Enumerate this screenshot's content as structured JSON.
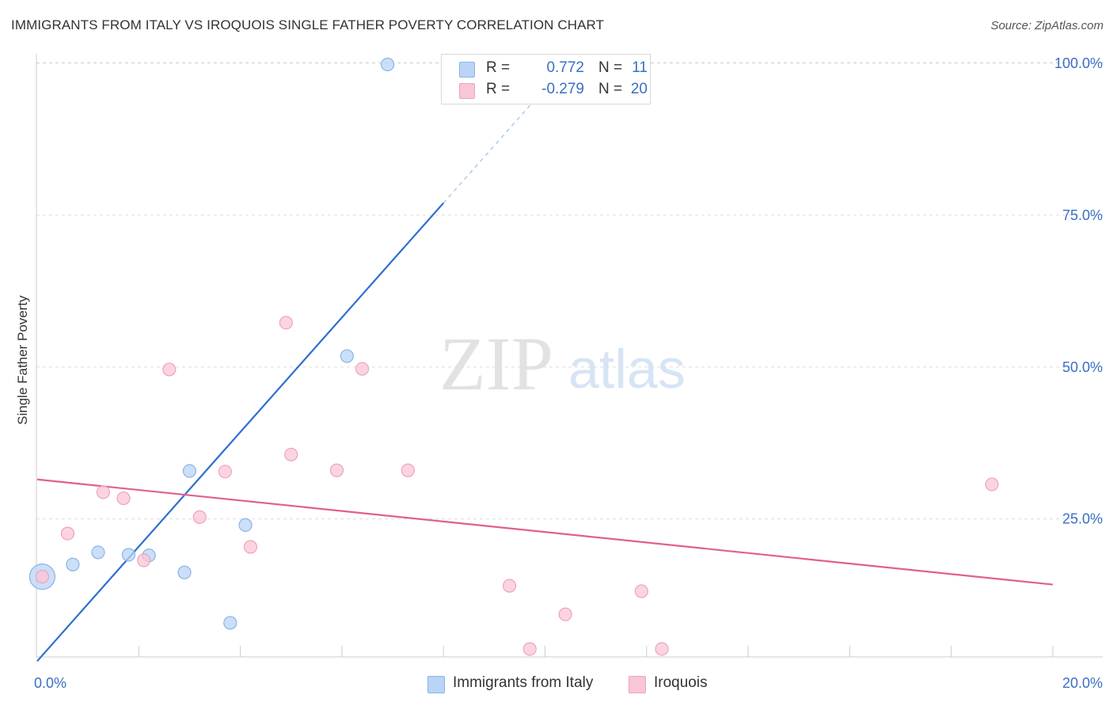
{
  "title": "IMMIGRANTS FROM ITALY VS IROQUOIS SINGLE FATHER POVERTY CORRELATION CHART",
  "source": "Source: ZipAtlas.com",
  "watermark": {
    "zip": "ZIP",
    "atlas": "atlas"
  },
  "legend": {
    "italy": {
      "r_label": "R =",
      "r_value": "0.772",
      "n_label": "N =",
      "n_value": "11"
    },
    "iroquois": {
      "r_label": "R =",
      "r_value": "-0.279",
      "n_label": "N =",
      "n_value": "20"
    }
  },
  "bottom_legend": {
    "italy": "Immigrants from Italy",
    "iroquois": "Iroquois"
  },
  "colors": {
    "italy_fill": "#b9d4f5",
    "italy_stroke": "#8ab3e6",
    "italy_line": "#2f6fd1",
    "iroquois_fill": "#f9c6d5",
    "iroquois_stroke": "#eea3bb",
    "iroquois_line": "#e0608c",
    "tick_label": "#3a6fc4",
    "grid": "#dddddd"
  },
  "chart_data": {
    "type": "scatter",
    "title": "IMMIGRANTS FROM ITALY VS IROQUOIS SINGLE FATHER POVERTY CORRELATION CHART",
    "xlabel": "",
    "ylabel": "Single Father Poverty",
    "xlim": [
      0,
      20
    ],
    "ylim": [
      0,
      105
    ],
    "x_tick_labels": [
      {
        "value": 0,
        "label": "0.0%"
      },
      {
        "value": 20,
        "label": "20.0%"
      }
    ],
    "y_tick_labels": [
      {
        "value": 25,
        "label": "25.0%"
      },
      {
        "value": 50,
        "label": "50.0%"
      },
      {
        "value": 75,
        "label": "75.0%"
      },
      {
        "value": 100,
        "label": "100.0%"
      }
    ],
    "x_minor_ticks": [
      2,
      4,
      6,
      8,
      10,
      12,
      14,
      16,
      18,
      20
    ],
    "series": [
      {
        "name": "Immigrants from Italy",
        "key": "italy",
        "points": [
          {
            "x": 0.1,
            "y": 15.5,
            "big": true
          },
          {
            "x": 0.7,
            "y": 17.5
          },
          {
            "x": 1.2,
            "y": 19.5
          },
          {
            "x": 1.8,
            "y": 19.1
          },
          {
            "x": 2.2,
            "y": 19.0
          },
          {
            "x": 2.9,
            "y": 16.2
          },
          {
            "x": 3.0,
            "y": 32.9
          },
          {
            "x": 3.8,
            "y": 7.9
          },
          {
            "x": 4.1,
            "y": 24.0
          },
          {
            "x": 6.1,
            "y": 51.8
          },
          {
            "x": 6.9,
            "y": 99.8
          }
        ],
        "trend": {
          "x0": 0,
          "y0": 1.6,
          "x1": 8.0,
          "y1": 77.0,
          "dash_to_x": 10.3
        }
      },
      {
        "name": "Iroquois",
        "key": "iroquois",
        "points": [
          {
            "x": 0.1,
            "y": 15.5
          },
          {
            "x": 0.6,
            "y": 22.6
          },
          {
            "x": 1.3,
            "y": 29.4
          },
          {
            "x": 1.7,
            "y": 28.4
          },
          {
            "x": 2.1,
            "y": 18.2
          },
          {
            "x": 2.6,
            "y": 49.6
          },
          {
            "x": 3.2,
            "y": 25.3
          },
          {
            "x": 3.7,
            "y": 32.8
          },
          {
            "x": 4.2,
            "y": 20.4
          },
          {
            "x": 4.9,
            "y": 57.3
          },
          {
            "x": 5.0,
            "y": 35.6
          },
          {
            "x": 5.9,
            "y": 33.0
          },
          {
            "x": 6.4,
            "y": 49.7
          },
          {
            "x": 7.3,
            "y": 33.0
          },
          {
            "x": 9.3,
            "y": 14.0
          },
          {
            "x": 9.7,
            "y": 3.6
          },
          {
            "x": 10.4,
            "y": 9.3
          },
          {
            "x": 11.9,
            "y": 13.1
          },
          {
            "x": 12.3,
            "y": 3.6
          },
          {
            "x": 18.8,
            "y": 30.7
          }
        ],
        "trend": {
          "x0": 0,
          "y0": 31.5,
          "x1": 20,
          "y1": 14.2
        }
      }
    ]
  }
}
